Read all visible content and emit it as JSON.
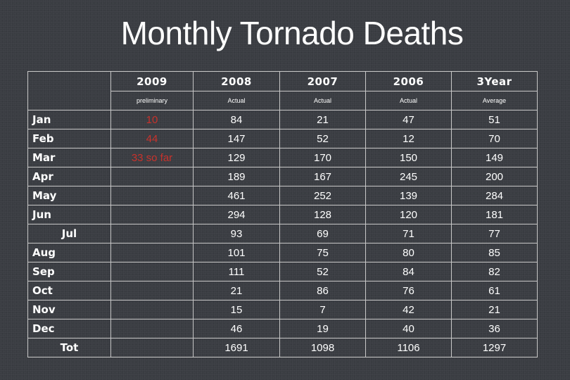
{
  "title": "Monthly Tornado Deaths",
  "table": {
    "years": [
      "2009",
      "2008",
      "2007",
      "2006",
      "3Year"
    ],
    "subheads": [
      "preliminary",
      "Actual",
      "Actual",
      "Actual",
      "Average"
    ],
    "rows": [
      {
        "month": "Jan",
        "y2009": "10",
        "y2008": "84",
        "y2007": "21",
        "y2006": "47",
        "avg": "51"
      },
      {
        "month": "Feb",
        "y2009": "44",
        "y2008": "147",
        "y2007": "52",
        "y2006": "12",
        "avg": "70"
      },
      {
        "month": "Mar",
        "y2009": "33 so far",
        "y2008": "129",
        "y2007": "170",
        "y2006": "150",
        "avg": "149"
      },
      {
        "month": "Apr",
        "y2009": "",
        "y2008": "189",
        "y2007": "167",
        "y2006": "245",
        "avg": "200"
      },
      {
        "month": "May",
        "y2009": "",
        "y2008": "461",
        "y2007": "252",
        "y2006": "139",
        "avg": "284"
      },
      {
        "month": "Jun",
        "y2009": "",
        "y2008": "294",
        "y2007": "128",
        "y2006": "120",
        "avg": "181"
      },
      {
        "month": "Jul",
        "y2009": "",
        "y2008": "93",
        "y2007": "69",
        "y2006": "71",
        "avg": "77"
      },
      {
        "month": "Aug",
        "y2009": "",
        "y2008": "101",
        "y2007": "75",
        "y2006": "80",
        "avg": "85"
      },
      {
        "month": "Sep",
        "y2009": "",
        "y2008": "111",
        "y2007": "52",
        "y2006": "84",
        "avg": "82"
      },
      {
        "month": "Oct",
        "y2009": "",
        "y2008": "21",
        "y2007": "86",
        "y2006": "76",
        "avg": "61"
      },
      {
        "month": "Nov",
        "y2009": "",
        "y2008": "15",
        "y2007": "7",
        "y2006": "42",
        "avg": "21"
      },
      {
        "month": "Dec",
        "y2009": "",
        "y2008": "46",
        "y2007": "19",
        "y2006": "40",
        "avg": "36"
      },
      {
        "month": "Tot",
        "y2009": "",
        "y2008": "1691",
        "y2007": "1098",
        "y2006": "1106",
        "avg": "1297"
      }
    ]
  },
  "colors": {
    "background": "#3a3d42",
    "text": "#ffffff",
    "preliminary": "#c8322c",
    "gridline": "#c8c8c8"
  }
}
